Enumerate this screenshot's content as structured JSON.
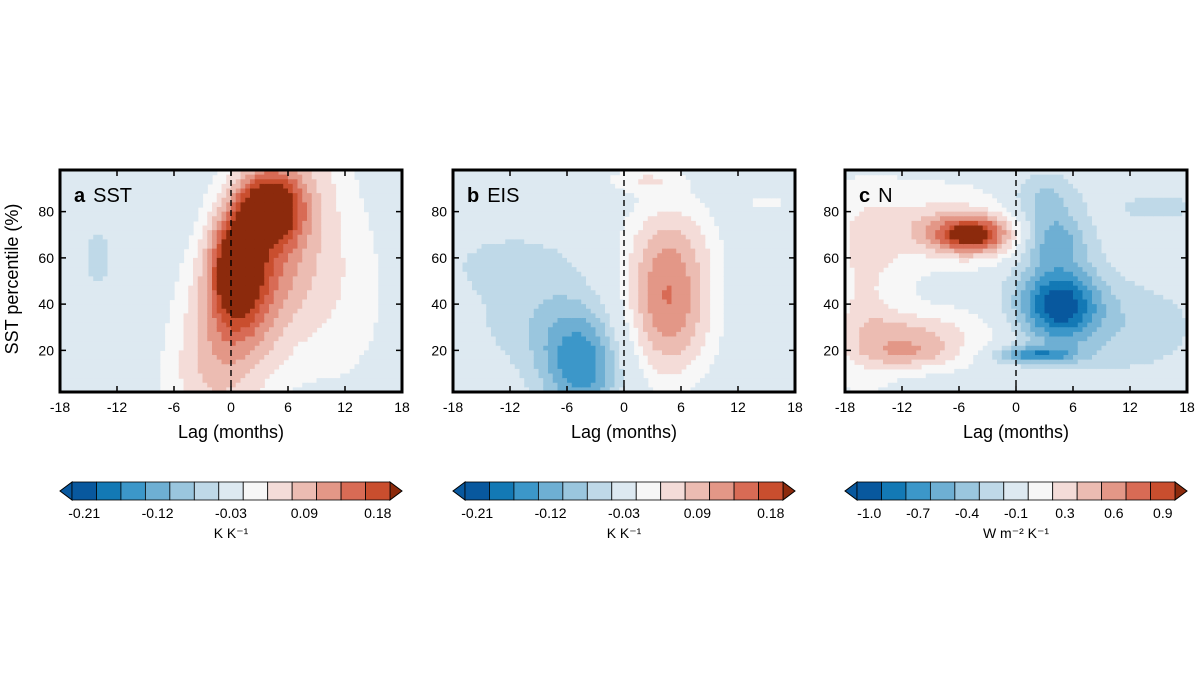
{
  "figure": {
    "ylabel": "SST percentile (%)",
    "xlabel": "Lag (months)"
  },
  "chart_data": [
    {
      "type": "heatmap",
      "panel_letter": "a",
      "panel_title": "SST",
      "xlabel": "Lag (months)",
      "ylabel": "SST percentile (%)",
      "xlim": [
        -18,
        18
      ],
      "ylim": [
        2,
        98
      ],
      "xticks": [
        -18,
        -12,
        -6,
        0,
        6,
        12,
        18
      ],
      "yticks": [
        20,
        40,
        60,
        80
      ],
      "zero_lag_line": "dashed",
      "colorbar": {
        "levels": [
          -0.21,
          -0.18,
          -0.15,
          -0.12,
          -0.09,
          -0.06,
          -0.03,
          0.03,
          0.06,
          0.09,
          0.12,
          0.15,
          0.18,
          0.21
        ],
        "tick_labels": [
          "-0.21",
          "-0.12",
          "-0.03",
          "0.09",
          "0.18"
        ],
        "unit": "K K⁻¹",
        "extend": "both"
      },
      "features": [
        {
          "lag": 2,
          "pct": 50,
          "value": 0.16,
          "sx": 4.2,
          "sy": 44,
          "shape": "ridge",
          "slope": 0.07
        },
        {
          "lag": 4,
          "pct": 82,
          "value": 0.19,
          "sx": 2.2,
          "sy": 10
        },
        {
          "lag": 0.5,
          "pct": 56,
          "value": 0.18,
          "sx": 1.8,
          "sy": 15
        },
        {
          "lag": 11,
          "pct": 45,
          "value": 0.05,
          "sx": 4.5,
          "sy": 34
        },
        {
          "lag": -14,
          "pct": 60,
          "value": -0.04,
          "sx": 1.5,
          "sy": 14
        }
      ]
    },
    {
      "type": "heatmap",
      "panel_letter": "b",
      "panel_title": "EIS",
      "xlabel": "Lag (months)",
      "ylabel": "",
      "xlim": [
        -18,
        18
      ],
      "ylim": [
        2,
        98
      ],
      "xticks": [
        -18,
        -12,
        -6,
        0,
        6,
        12,
        18
      ],
      "yticks": [
        20,
        40,
        60,
        80
      ],
      "zero_lag_line": "dashed",
      "colorbar": {
        "levels": [
          -0.21,
          -0.18,
          -0.15,
          -0.12,
          -0.09,
          -0.06,
          -0.03,
          0.03,
          0.06,
          0.09,
          0.12,
          0.15,
          0.18,
          0.21
        ],
        "tick_labels": [
          "-0.21",
          "-0.12",
          "-0.03",
          "0.09",
          "0.18"
        ],
        "unit": "K K⁻¹",
        "extend": "both"
      },
      "features": [
        {
          "lag": 4.5,
          "pct": 38,
          "value": 0.145,
          "sx": 3.4,
          "sy": 22
        },
        {
          "lag": 5,
          "pct": 68,
          "value": 0.05,
          "sx": 3.5,
          "sy": 16
        },
        {
          "lag": 2,
          "pct": 94,
          "value": 0.05,
          "sx": 3,
          "sy": 4
        },
        {
          "lag": -4.5,
          "pct": 12,
          "value": -0.13,
          "sx": 3,
          "sy": 16
        },
        {
          "lag": -8,
          "pct": 32,
          "value": -0.05,
          "sx": 6,
          "sy": 16
        },
        {
          "lag": -12,
          "pct": 58,
          "value": -0.04,
          "sx": 5,
          "sy": 10
        },
        {
          "lag": 15,
          "pct": 84,
          "value": 0.04,
          "sx": 2,
          "sy": 3
        }
      ]
    },
    {
      "type": "heatmap",
      "panel_letter": "c",
      "panel_title": "N",
      "xlabel": "Lag (months)",
      "ylabel": "",
      "xlim": [
        -18,
        18
      ],
      "ylim": [
        2,
        98
      ],
      "xticks": [
        -18,
        -12,
        -6,
        0,
        6,
        12,
        18
      ],
      "yticks": [
        20,
        40,
        60,
        80
      ],
      "zero_lag_line": "dashed",
      "colorbar": {
        "levels": [
          -1.0,
          -0.85,
          -0.7,
          -0.55,
          -0.4,
          -0.25,
          -0.1,
          0.1,
          0.3,
          0.45,
          0.6,
          0.75,
          0.9,
          1.0
        ],
        "tick_labels": [
          "-1.0",
          "-0.7",
          "-0.4",
          "-0.1",
          "0.3",
          "0.6",
          "0.9"
        ],
        "unit": "W m⁻² K⁻¹",
        "extend": "both"
      },
      "features": [
        {
          "lag": -4.5,
          "pct": 70,
          "value": 0.95,
          "sx": 3,
          "sy": 6
        },
        {
          "lag": -9,
          "pct": 74,
          "value": 0.35,
          "sx": 6,
          "sy": 12
        },
        {
          "lag": -10,
          "pct": 28,
          "value": 0.4,
          "sx": 5,
          "sy": 7
        },
        {
          "lag": -11,
          "pct": 18,
          "value": 0.4,
          "sx": 4,
          "sy": 5
        },
        {
          "lag": -16,
          "pct": 45,
          "value": 0.3,
          "sx": 3,
          "sy": 30
        },
        {
          "lag": 4.5,
          "pct": 40,
          "value": -0.95,
          "sx": 3,
          "sy": 12
        },
        {
          "lag": 4,
          "pct": 68,
          "value": -0.45,
          "sx": 2.5,
          "sy": 8
        },
        {
          "lag": 3,
          "pct": 85,
          "value": -0.3,
          "sx": 2.5,
          "sy": 8
        },
        {
          "lag": 2,
          "pct": 18,
          "value": -0.6,
          "sx": 3,
          "sy": 2.5
        },
        {
          "lag": 12,
          "pct": 30,
          "value": -0.2,
          "sx": 5,
          "sy": 14
        },
        {
          "lag": 15,
          "pct": 82,
          "value": -0.2,
          "sx": 3,
          "sy": 4
        }
      ]
    }
  ],
  "colors": {
    "negative": [
      "#08589e",
      "#1379b5",
      "#3c97c9",
      "#6eafd3",
      "#9ac6de",
      "#bfd9e8",
      "#dde9f1"
    ],
    "positive": [
      "#f4dcd8",
      "#ecbcb2",
      "#e39787",
      "#d86b55",
      "#c94e2e",
      "#b83a10",
      "#8c2a0c"
    ],
    "neutral": "#f7f7f7"
  }
}
